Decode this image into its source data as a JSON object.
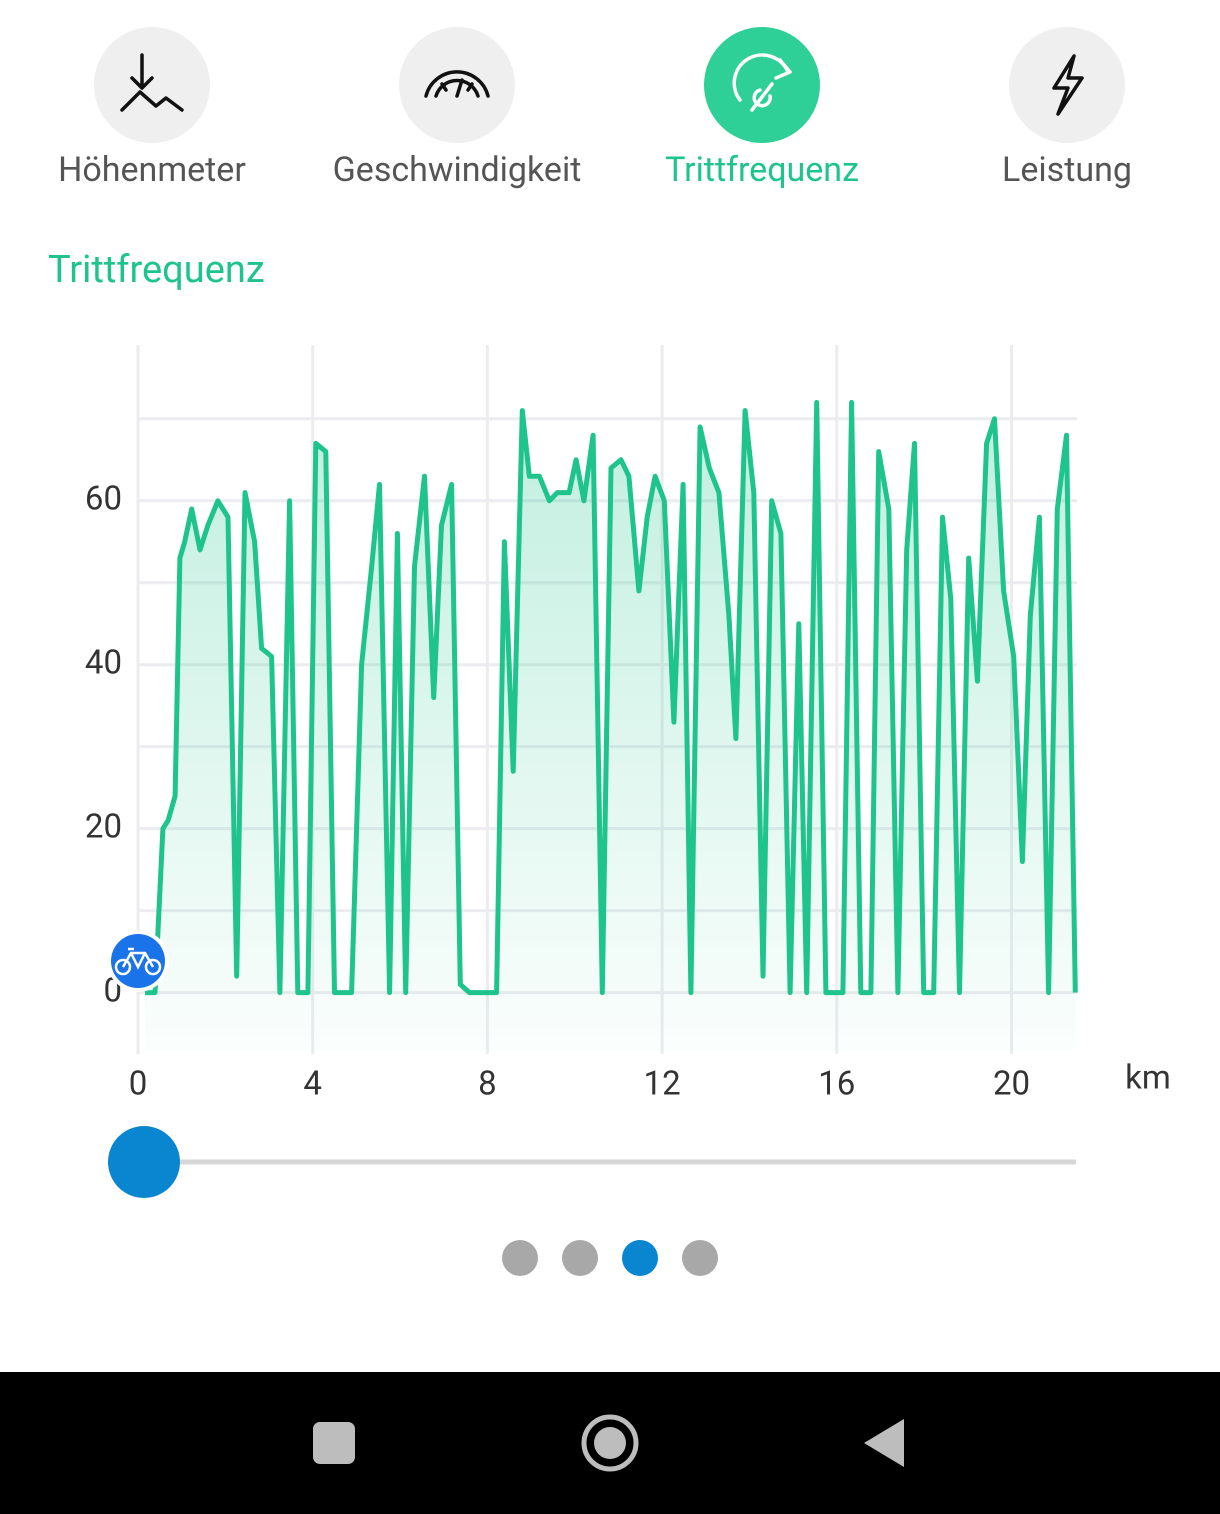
{
  "tabs": [
    {
      "label": "Höhenmeter",
      "selected": false
    },
    {
      "label": "Geschwindigkeit",
      "selected": false
    },
    {
      "label": "Trittfrequenz",
      "selected": true
    },
    {
      "label": "Leistung",
      "selected": false
    }
  ],
  "section_title": "Trittfrequenz",
  "chart_data": {
    "type": "line",
    "x_label": "km",
    "color": "#1ec48c",
    "x": [
      0.16,
      0.39,
      0.57,
      0.69,
      0.85,
      0.96,
      1.07,
      1.23,
      1.42,
      1.6,
      1.83,
      2.06,
      2.26,
      2.45,
      2.67,
      2.83,
      3.06,
      3.25,
      3.47,
      3.66,
      3.89,
      4.07,
      4.3,
      4.5,
      4.89,
      5.12,
      5.35,
      5.53,
      5.76,
      5.94,
      6.13,
      6.33,
      6.56,
      6.77,
      6.95,
      7.18,
      7.38,
      7.59,
      8.21,
      8.39,
      8.59,
      8.8,
      8.96,
      9.19,
      9.42,
      9.6,
      9.87,
      10.03,
      10.21,
      10.42,
      10.63,
      10.83,
      11.06,
      11.24,
      11.47,
      11.66,
      11.84,
      12.05,
      12.27,
      12.48,
      12.66,
      12.87,
      13.08,
      13.3,
      13.53,
      13.69,
      13.9,
      14.1,
      14.31,
      14.51,
      14.72,
      14.93,
      15.13,
      15.31,
      15.54,
      15.75,
      16.14,
      16.34,
      16.55,
      16.78,
      16.96,
      17.19,
      17.4,
      17.6,
      17.78,
      17.99,
      18.22,
      18.42,
      18.61,
      18.81,
      19.02,
      19.22,
      19.43,
      19.61,
      19.82,
      20.05,
      20.25,
      20.43,
      20.64,
      20.85,
      21.05,
      21.26,
      21.46
    ],
    "values": [
      0,
      0,
      20,
      21,
      24,
      53,
      55,
      59,
      54,
      57,
      60,
      58,
      2,
      61,
      55,
      42,
      41,
      0,
      60,
      0,
      0,
      67,
      66,
      0,
      0,
      40,
      52,
      62,
      0,
      56,
      0,
      52,
      63,
      36,
      57,
      62,
      1,
      0,
      0,
      55,
      27,
      71,
      63,
      63,
      60,
      61,
      61,
      65,
      60,
      68,
      0,
      64,
      65,
      63,
      49,
      58,
      63,
      60,
      33,
      62,
      0,
      69,
      64,
      61,
      46,
      31,
      71,
      61,
      2,
      60,
      56,
      0,
      45,
      0,
      72,
      0,
      0,
      72,
      0,
      0,
      66,
      59,
      0,
      54,
      67,
      0,
      0,
      58,
      48,
      0,
      53,
      38,
      67,
      70,
      49,
      41,
      16,
      46,
      58,
      0,
      59,
      68,
      0
    ],
    "xlim": [
      0,
      21.5
    ],
    "ylim": [
      -7,
      79
    ],
    "xticks": [
      0,
      4,
      8,
      12,
      16,
      20
    ],
    "yticks": [
      0,
      20,
      40,
      60
    ],
    "yminor_ticks": [
      10,
      30,
      50,
      70
    ],
    "grid": true
  },
  "pager": {
    "count": 4,
    "active": 2
  }
}
